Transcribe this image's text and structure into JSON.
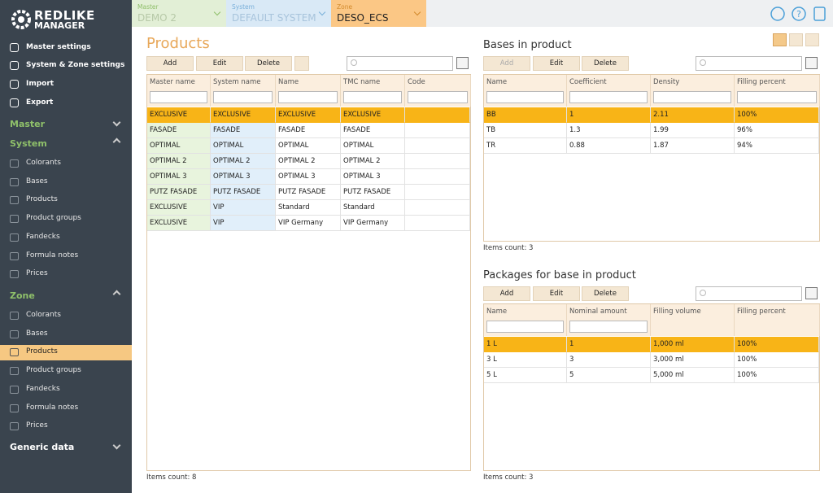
{
  "logo": {
    "line1": "REDLIKE",
    "line2": "MANAGER"
  },
  "sidebar": {
    "top": [
      "Master settings",
      "System & Zone settings",
      "Import",
      "Export"
    ],
    "sections": [
      {
        "title": "Master",
        "items": []
      },
      {
        "title": "System",
        "items": [
          "Colorants",
          "Bases",
          "Products",
          "Product groups",
          "Fandecks",
          "Formula notes",
          "Prices"
        ]
      },
      {
        "title": "Zone",
        "items": [
          "Colorants",
          "Bases",
          "Products",
          "Product groups",
          "Fandecks",
          "Formula notes",
          "Prices"
        ]
      },
      {
        "title": "Generic data",
        "items": []
      }
    ]
  },
  "topbar": {
    "tabs": [
      {
        "label": "Master",
        "value": "DEMO 2"
      },
      {
        "label": "System",
        "value": "DEFAULT SYSTEM"
      },
      {
        "label": "Zone",
        "value": "DESO_ECS"
      }
    ]
  },
  "products": {
    "title": "Products",
    "buttons": [
      "Add",
      "Edit",
      "Delete"
    ],
    "columns": [
      "Master name",
      "System name",
      "Name",
      "TMC name",
      "Code"
    ],
    "rows": [
      [
        "EXCLUSIVE",
        "EXCLUSIVE",
        "EXCLUSIVE",
        "EXCLUSIVE",
        ""
      ],
      [
        "FASADE",
        "FASADE",
        "FASADE",
        "FASADE",
        ""
      ],
      [
        "OPTIMAL",
        "OPTIMAL",
        "OPTIMAL",
        "OPTIMAL",
        ""
      ],
      [
        "OPTIMAL 2",
        "OPTIMAL 2",
        "OPTIMAL 2",
        "OPTIMAL 2",
        ""
      ],
      [
        "OPTIMAL 3",
        "OPTIMAL 3",
        "OPTIMAL 3",
        "OPTIMAL 3",
        ""
      ],
      [
        "PUTZ FASADE",
        "PUTZ FASADE",
        "PUTZ FASADE",
        "PUTZ FASADE",
        ""
      ],
      [
        "EXCLUSIVE",
        "VIP",
        "Standard",
        "Standard",
        ""
      ],
      [
        "EXCLUSIVE",
        "VIP",
        "VIP Germany",
        "VIP Germany",
        ""
      ]
    ],
    "footer": "Items count: 8"
  },
  "bases": {
    "title": "Bases in product",
    "buttons": [
      "Add",
      "Edit",
      "Delete"
    ],
    "columns": [
      "Name",
      "Coefficient",
      "Density",
      "Filling percent"
    ],
    "rows": [
      [
        "BB",
        "1",
        "2.11",
        "100%"
      ],
      [
        "TB",
        "1.3",
        "1.99",
        "96%"
      ],
      [
        "TR",
        "0.88",
        "1.87",
        "94%"
      ]
    ],
    "footer": "Items count: 3"
  },
  "packages": {
    "title": "Packages for base in product",
    "buttons": [
      "Add",
      "Edit",
      "Delete"
    ],
    "columns": [
      "Name",
      "Nominal amount",
      "Filling volume",
      "Filling percent"
    ],
    "rows": [
      [
        "1 L",
        "1",
        "1,000 ml",
        "100%"
      ],
      [
        "3 L",
        "3",
        "3,000 ml",
        "100%"
      ],
      [
        "5 L",
        "5",
        "5,000 ml",
        "100%"
      ]
    ],
    "footer": "Items count: 3"
  }
}
